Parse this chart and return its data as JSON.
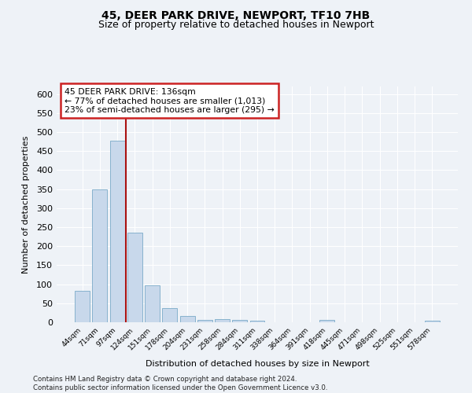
{
  "title": "45, DEER PARK DRIVE, NEWPORT, TF10 7HB",
  "subtitle": "Size of property relative to detached houses in Newport",
  "xlabel": "Distribution of detached houses by size in Newport",
  "ylabel": "Number of detached properties",
  "bar_color": "#c8d8eb",
  "bar_edge_color": "#7aaac8",
  "vline_color": "#aa1111",
  "vline_x_index": 3,
  "annotation_text": "45 DEER PARK DRIVE: 136sqm\n← 77% of detached houses are smaller (1,013)\n23% of semi-detached houses are larger (295) →",
  "annotation_box_color": "#ffffff",
  "annotation_box_edge": "#cc2222",
  "categories": [
    "44sqm",
    "71sqm",
    "97sqm",
    "124sqm",
    "151sqm",
    "178sqm",
    "204sqm",
    "231sqm",
    "258sqm",
    "284sqm",
    "311sqm",
    "338sqm",
    "364sqm",
    "391sqm",
    "418sqm",
    "445sqm",
    "471sqm",
    "498sqm",
    "525sqm",
    "551sqm",
    "578sqm"
  ],
  "values": [
    83,
    350,
    478,
    235,
    97,
    37,
    17,
    7,
    8,
    7,
    5,
    0,
    0,
    0,
    7,
    0,
    0,
    0,
    0,
    0,
    5
  ],
  "ylim": [
    0,
    620
  ],
  "yticks": [
    0,
    50,
    100,
    150,
    200,
    250,
    300,
    350,
    400,
    450,
    500,
    550,
    600
  ],
  "footer": "Contains HM Land Registry data © Crown copyright and database right 2024.\nContains public sector information licensed under the Open Government Licence v3.0.",
  "background_color": "#eef2f7",
  "grid_color": "#ffffff",
  "title_fontsize": 10,
  "subtitle_fontsize": 9
}
